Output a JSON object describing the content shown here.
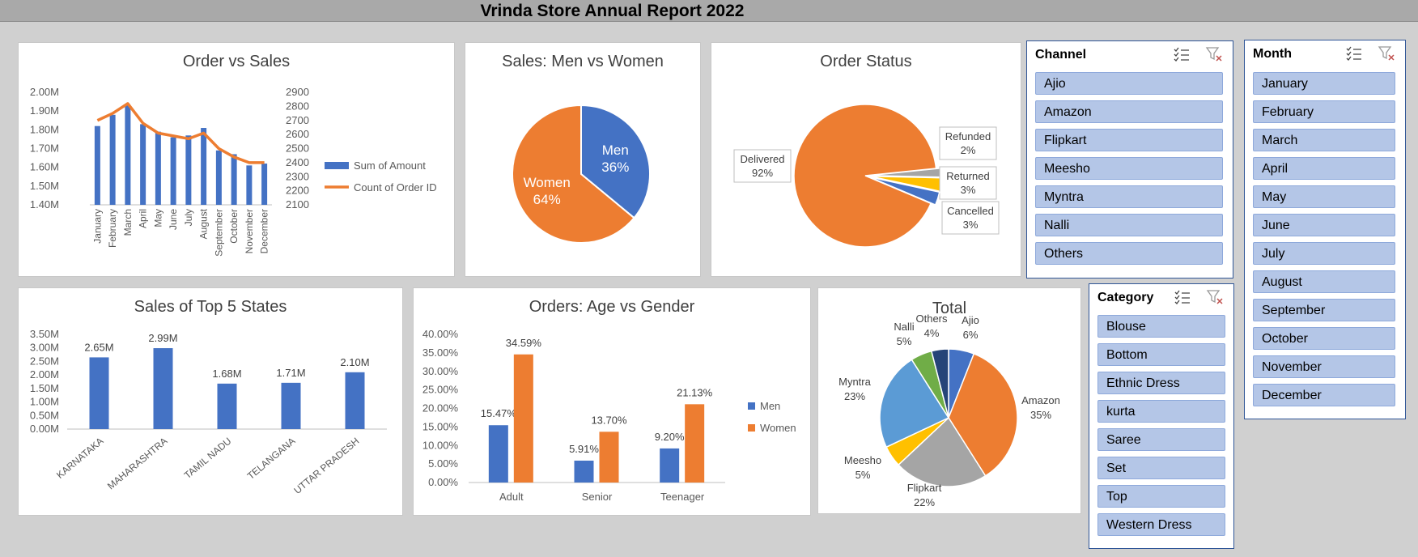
{
  "report_title": "Vrinda Store Annual Report 2022",
  "colors": {
    "blue": "#4472c4",
    "orange": "#ed7d31",
    "gray": "#a5a5a5",
    "yellow": "#ffc000",
    "lightblue": "#5b9bd5",
    "green": "#70ad47",
    "navy": "#264478"
  },
  "chart_data": [
    {
      "id": "order_vs_sales",
      "type": "bar",
      "title": "Order vs Sales",
      "categories": [
        "January",
        "February",
        "March",
        "April",
        "May",
        "June",
        "July",
        "August",
        "September",
        "October",
        "November",
        "December"
      ],
      "series": [
        {
          "name": "Sum of Amount",
          "type": "bar",
          "axis": "left",
          "values": [
            1.82,
            1.88,
            1.93,
            1.83,
            1.79,
            1.76,
            1.77,
            1.81,
            1.69,
            1.67,
            1.61,
            1.62
          ]
        },
        {
          "name": "Count of Order ID",
          "type": "line",
          "axis": "right",
          "values": [
            2700,
            2750,
            2820,
            2680,
            2610,
            2590,
            2570,
            2610,
            2500,
            2440,
            2400,
            2400
          ]
        }
      ],
      "y_left_ticks": [
        "2.00M",
        "1.90M",
        "1.80M",
        "1.70M",
        "1.60M",
        "1.50M",
        "1.40M"
      ],
      "y_left_range": [
        1.4,
        2.0
      ],
      "y_right_ticks": [
        "2900",
        "2800",
        "2700",
        "2600",
        "2500",
        "2400",
        "2300",
        "2200",
        "2100"
      ],
      "y_right_range": [
        2100,
        2900
      ],
      "legend": "right"
    },
    {
      "id": "sales_men_women",
      "type": "pie",
      "title": "Sales: Men vs Women",
      "slices": [
        {
          "name": "Men",
          "value": 36,
          "label": "36%"
        },
        {
          "name": "Women",
          "value": 64,
          "label": "64%"
        }
      ]
    },
    {
      "id": "order_status",
      "type": "pie",
      "title": "Order Status",
      "slices": [
        {
          "name": "Delivered",
          "value": 92,
          "label": "92%"
        },
        {
          "name": "Refunded",
          "value": 2,
          "label": "2%"
        },
        {
          "name": "Returned",
          "value": 3,
          "label": "3%"
        },
        {
          "name": "Cancelled",
          "value": 3,
          "label": "3%"
        }
      ]
    },
    {
      "id": "top5_states",
      "type": "bar",
      "title": "Sales of Top 5 States",
      "categories": [
        "KARNATAKA",
        "MAHARASHTRA",
        "TAMIL NADU",
        "TELANGANA",
        "UTTAR PRADESH"
      ],
      "values": [
        2.65,
        2.99,
        1.68,
        1.71,
        2.1
      ],
      "data_labels": [
        "2.65M",
        "2.99M",
        "1.68M",
        "1.71M",
        "2.10M"
      ],
      "y_ticks": [
        "3.50M",
        "3.00M",
        "2.50M",
        "2.00M",
        "1.50M",
        "1.00M",
        "0.50M",
        "0.00M"
      ],
      "ylim": [
        0,
        3.5
      ]
    },
    {
      "id": "age_vs_gender",
      "type": "bar",
      "title": "Orders: Age vs Gender",
      "categories": [
        "Adult",
        "Senior",
        "Teenager"
      ],
      "series": [
        {
          "name": "Men",
          "values": [
            15.47,
            5.91,
            9.2
          ],
          "labels": [
            "15.47%",
            "5.91%",
            "9.20%"
          ]
        },
        {
          "name": "Women",
          "values": [
            34.59,
            13.7,
            21.13
          ],
          "labels": [
            "34.59%",
            "13.70%",
            "21.13%"
          ]
        }
      ],
      "y_ticks": [
        "40.00%",
        "35.00%",
        "30.00%",
        "25.00%",
        "20.00%",
        "15.00%",
        "10.00%",
        "5.00%",
        "0.00%"
      ],
      "ylim": [
        0,
        40
      ],
      "legend": "right"
    },
    {
      "id": "channel_total",
      "type": "pie",
      "title": "Total",
      "slices": [
        {
          "name": "Ajio",
          "value": 6,
          "label": "6%"
        },
        {
          "name": "Amazon",
          "value": 35,
          "label": "35%"
        },
        {
          "name": "Flipkart",
          "value": 22,
          "label": "22%"
        },
        {
          "name": "Meesho",
          "value": 5,
          "label": "5%"
        },
        {
          "name": "Myntra",
          "value": 23,
          "label": "23%"
        },
        {
          "name": "Nalli",
          "value": 5,
          "label": "5%"
        },
        {
          "name": "Others",
          "value": 4,
          "label": "4%"
        }
      ]
    }
  ],
  "slicers": {
    "channel": {
      "title": "Channel",
      "items": [
        "Ajio",
        "Amazon",
        "Flipkart",
        "Meesho",
        "Myntra",
        "Nalli",
        "Others"
      ]
    },
    "month": {
      "title": "Month",
      "items": [
        "January",
        "February",
        "March",
        "April",
        "May",
        "June",
        "July",
        "August",
        "September",
        "October",
        "November",
        "December"
      ]
    },
    "category": {
      "title": "Category",
      "items": [
        "Blouse",
        "Bottom",
        "Ethnic Dress",
        "kurta",
        "Saree",
        "Set",
        "Top",
        "Western Dress"
      ]
    }
  }
}
